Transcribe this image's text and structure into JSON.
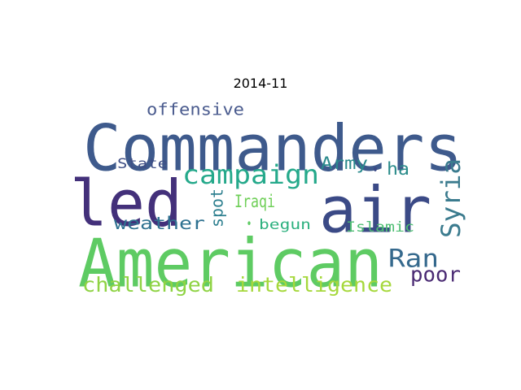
{
  "title": "2014-11",
  "words": [
    {
      "text": "Commanders",
      "color": "#3e5a8c"
    },
    {
      "text": "led",
      "color": "#43307a"
    },
    {
      "text": "air",
      "color": "#3b4a86"
    },
    {
      "text": "American",
      "color": "#5ecb63"
    },
    {
      "text": "campaign",
      "color": "#25a98b"
    },
    {
      "text": "Syria",
      "color": "#3b7b8e"
    },
    {
      "text": "Ran",
      "color": "#35698d"
    },
    {
      "text": "offensive",
      "color": "#4a5b8e"
    },
    {
      "text": "State",
      "color": "#3e4e85"
    },
    {
      "text": "Army",
      "color": "#2a8a8c"
    },
    {
      "text": "ha",
      "color": "#2b8c8b"
    },
    {
      "text": "Iraqi",
      "color": "#6fcf58"
    },
    {
      "text": "spot",
      "color": "#2d7f8f"
    },
    {
      "text": "weather",
      "color": "#2e7190"
    },
    {
      "text": "begun",
      "color": "#2cb07e"
    },
    {
      "text": "Islamic",
      "color": "#4dbd72"
    },
    {
      "text": "poor",
      "color": "#4a2a73"
    },
    {
      "text": "challenged",
      "color": "#8fd344"
    },
    {
      "text": "intelligence",
      "color": "#a6d83c"
    },
    {
      "text": "•",
      "color": "#3b4a86"
    },
    {
      "text": "•",
      "color": "#5ecb63"
    }
  ]
}
